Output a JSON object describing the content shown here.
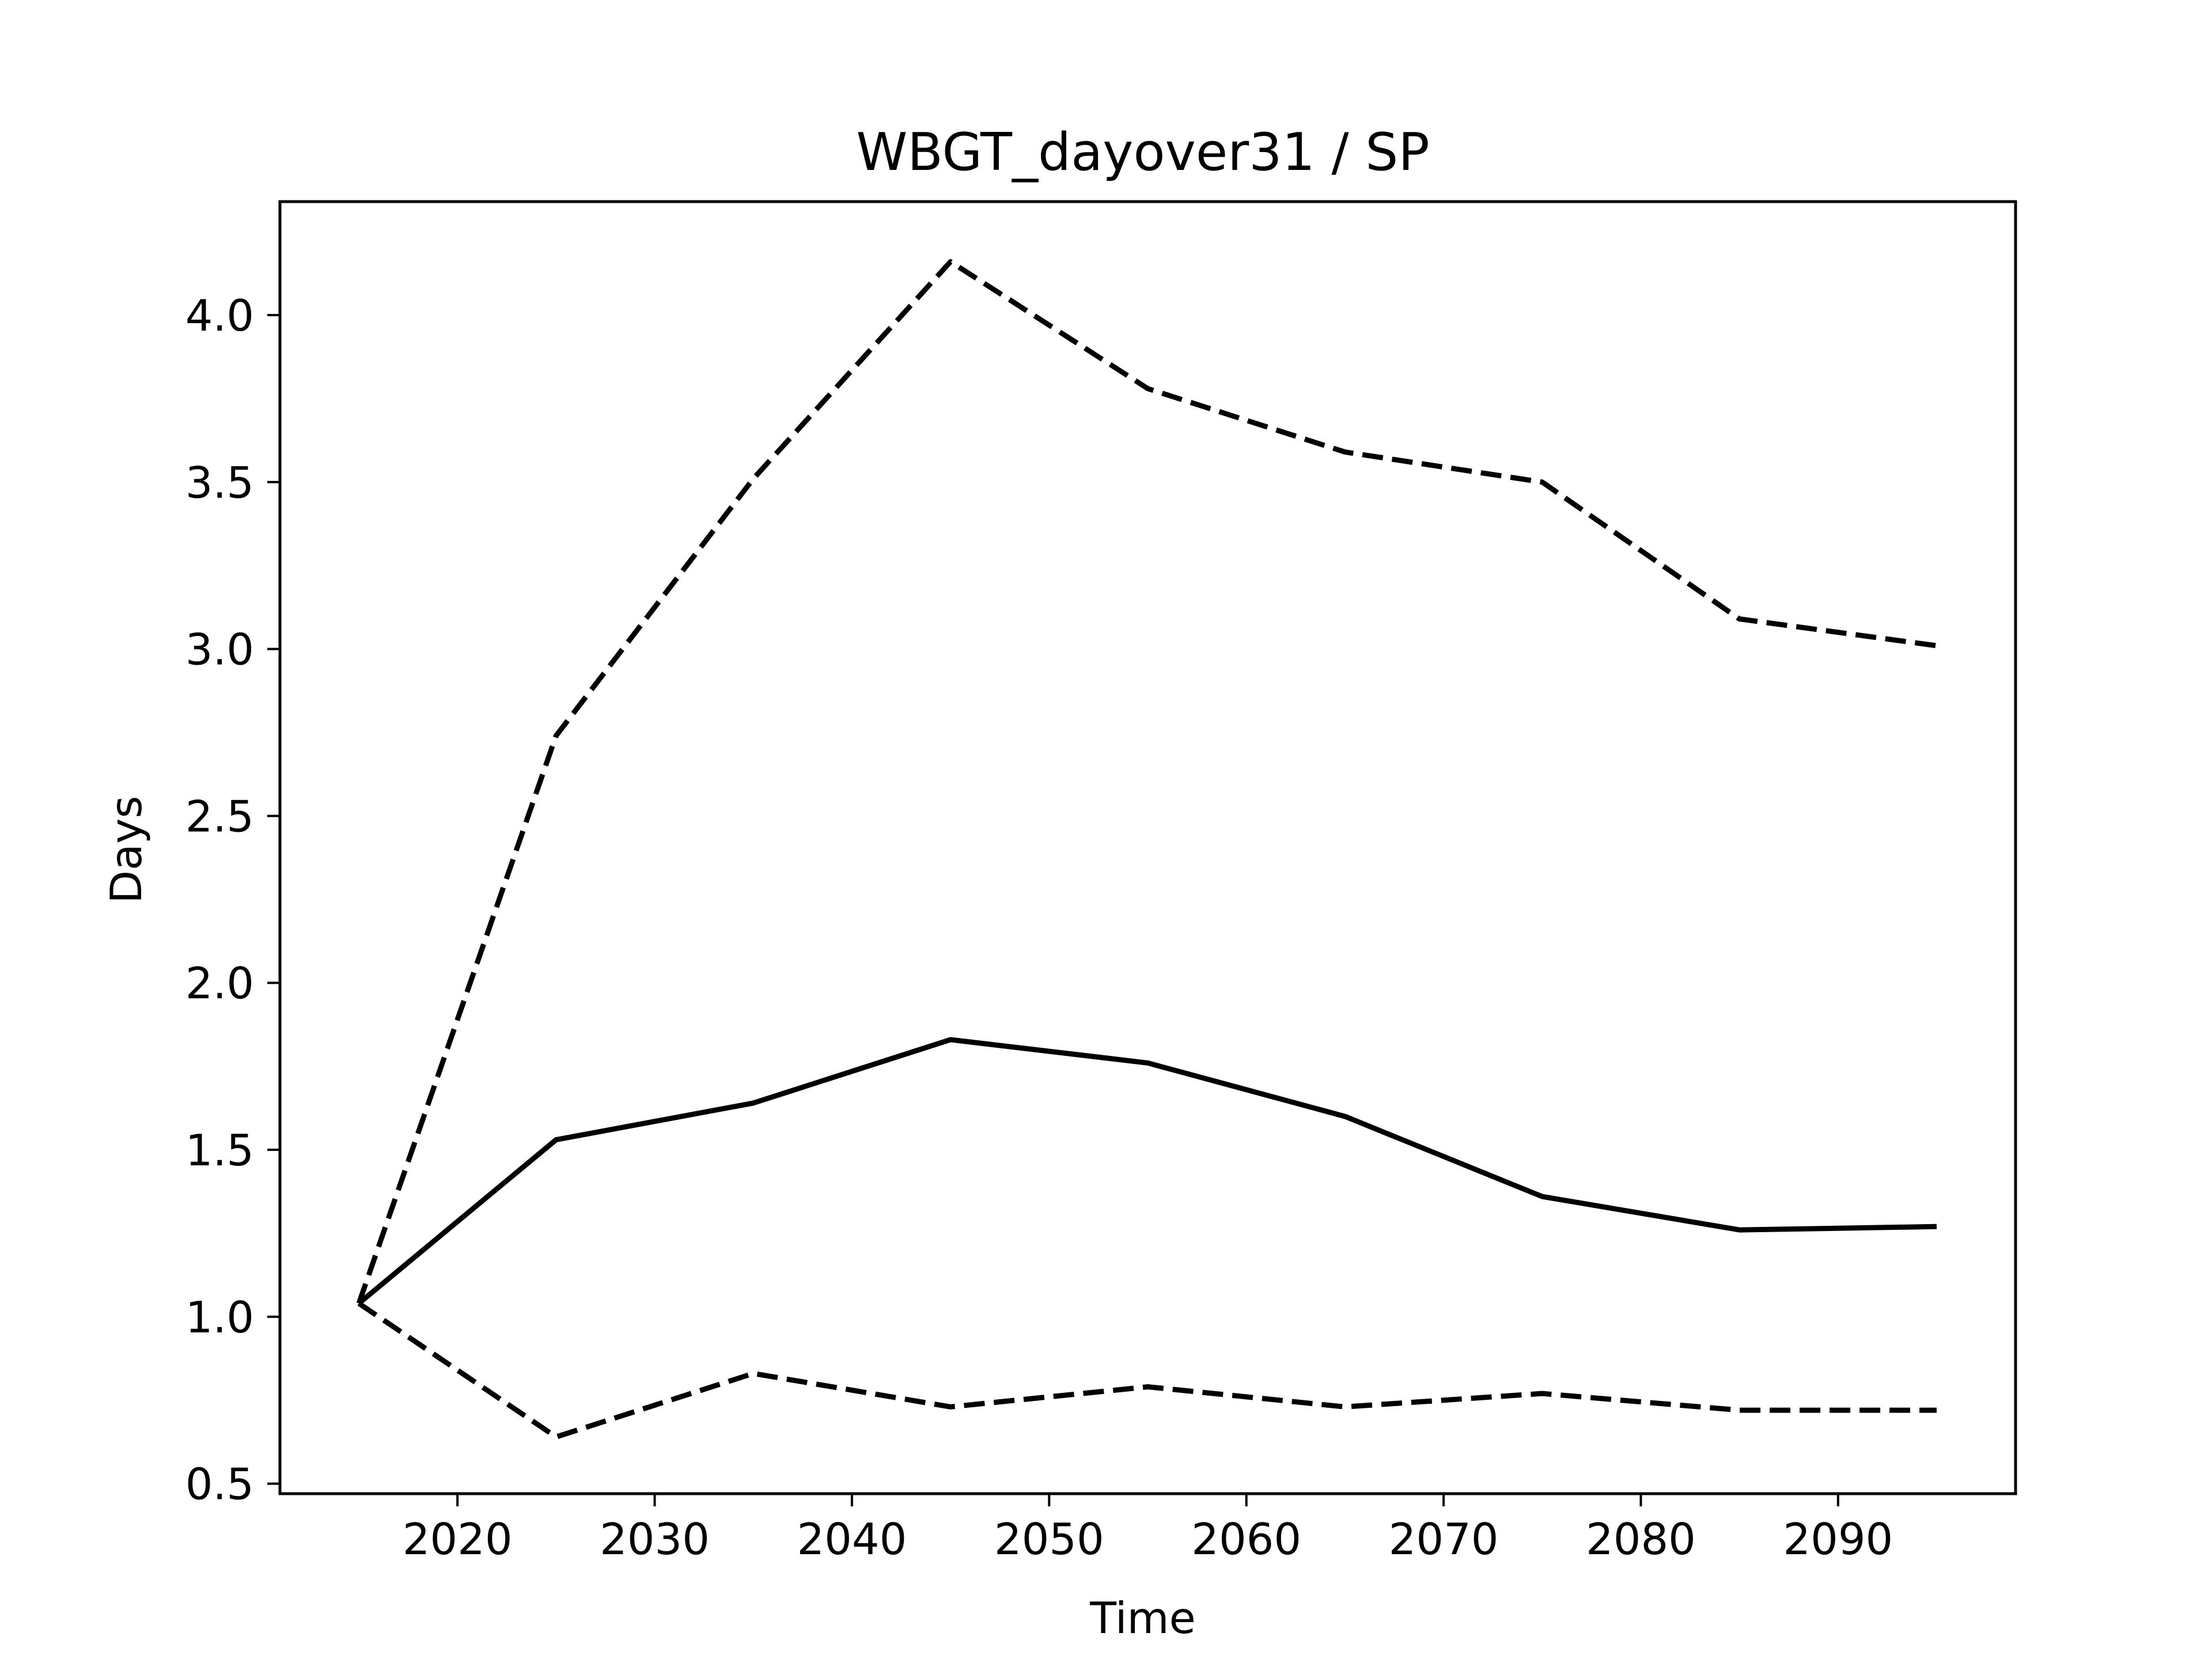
{
  "chart_data": {
    "type": "line",
    "title": "WBGT_dayover31 / SP",
    "xlabel": "Time",
    "ylabel": "Days",
    "xlim": [
      2011,
      2099
    ],
    "ylim": [
      0.47,
      4.34
    ],
    "xticks": [
      2020,
      2030,
      2040,
      2050,
      2060,
      2070,
      2080,
      2090
    ],
    "yticks": [
      0.5,
      1.0,
      1.5,
      2.0,
      2.5,
      3.0,
      3.5,
      4.0
    ],
    "ytick_labels": [
      "0.5",
      "1.0",
      "1.5",
      "2.0",
      "2.5",
      "3.0",
      "3.5",
      "4.0"
    ],
    "grid": false,
    "legend": "none",
    "x": [
      2015,
      2025,
      2035,
      2045,
      2055,
      2065,
      2075,
      2085,
      2095
    ],
    "series": [
      {
        "style": "dashed",
        "color": "#000000",
        "values": [
          1.04,
          2.74,
          3.51,
          4.16,
          3.78,
          3.59,
          3.5,
          3.09,
          3.01
        ]
      },
      {
        "style": "solid",
        "color": "#000000",
        "values": [
          1.04,
          1.53,
          1.64,
          1.83,
          1.76,
          1.6,
          1.36,
          1.26,
          1.27
        ]
      },
      {
        "style": "dashed",
        "color": "#000000",
        "values": [
          1.04,
          0.64,
          0.83,
          0.73,
          0.79,
          0.73,
          0.77,
          0.72,
          0.72
        ]
      }
    ]
  }
}
